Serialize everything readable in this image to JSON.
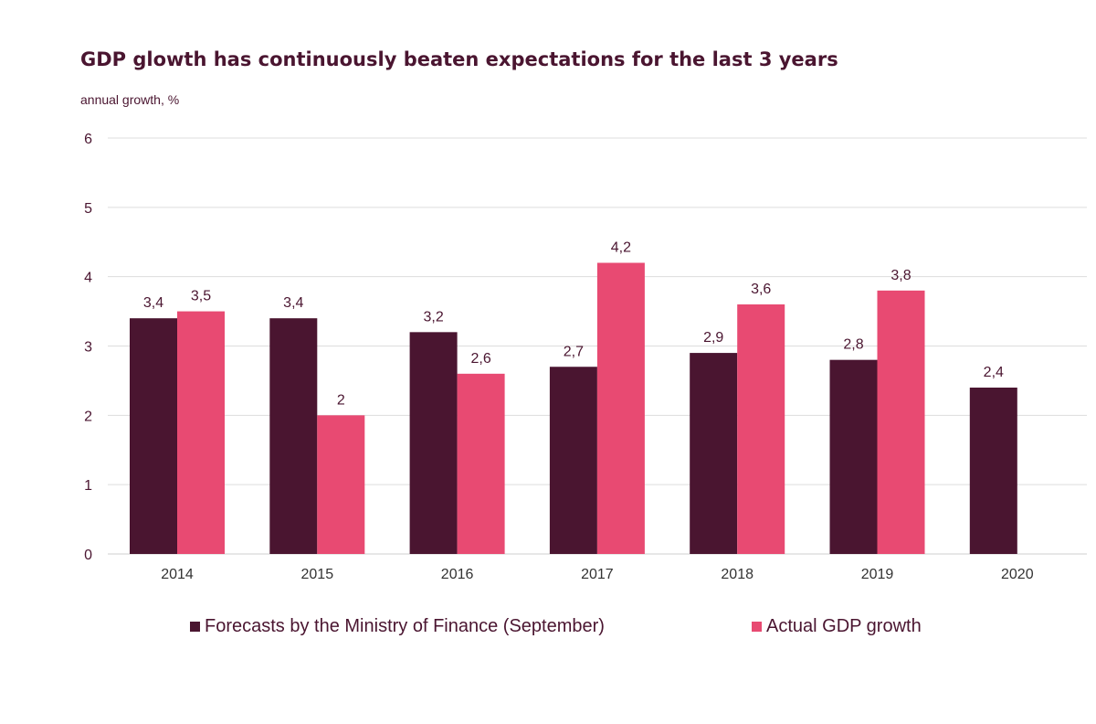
{
  "chart_data": {
    "type": "bar",
    "title": "GDP glowth has continuously beaten expectations for the last 3 years",
    "ylabel": "annual growth, %",
    "xlabel": "",
    "ylim": [
      0,
      6
    ],
    "yticks": [
      "0",
      "1",
      "2",
      "3",
      "4",
      "5",
      "6"
    ],
    "categories": [
      "2014",
      "2015",
      "2016",
      "2017",
      "2018",
      "2019",
      "2020"
    ],
    "grid": true,
    "legend_position": "bottom",
    "series": [
      {
        "name": "Forecasts by the Ministry of Finance (September)",
        "color": "#4a1530",
        "values": [
          3.4,
          3.4,
          3.2,
          2.7,
          2.9,
          2.8,
          2.4
        ],
        "labels": [
          "3,4",
          "3,4",
          "3,2",
          "2,7",
          "2,9",
          "2,8",
          "2,4"
        ]
      },
      {
        "name": "Actual GDP growth",
        "color": "#e84a72",
        "values": [
          3.5,
          2.0,
          2.6,
          4.2,
          3.6,
          3.8,
          null
        ],
        "labels": [
          "3,5",
          "2",
          "2,6",
          "4,2",
          "3,6",
          "3,8",
          ""
        ]
      }
    ]
  }
}
